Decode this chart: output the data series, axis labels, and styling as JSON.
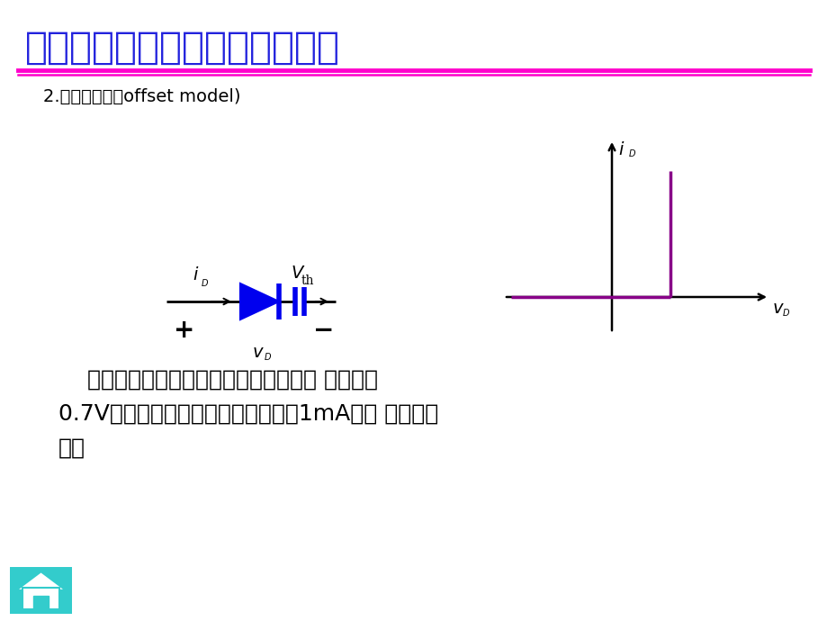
{
  "title": "二极管电路的简化模型分析方法",
  "title_color": "#2222dd",
  "subtitle": "2.恒压降模型（offset model)",
  "body_line1": "    二极管导通后，认为其压降是恒定的， 典型値为",
  "body_line2": "0.7V，只有当二极管的电流大于等于1mA时， 才是正确",
  "body_line3": "的。",
  "decor_color1": "#ff00cc",
  "decor_color2": "#ff00cc",
  "circuit_color": "#0000ee",
  "graph_color": "#880088",
  "background_color": "#ffffff",
  "icon_bg": "#33cccc",
  "icon_fg": "#ffffff"
}
